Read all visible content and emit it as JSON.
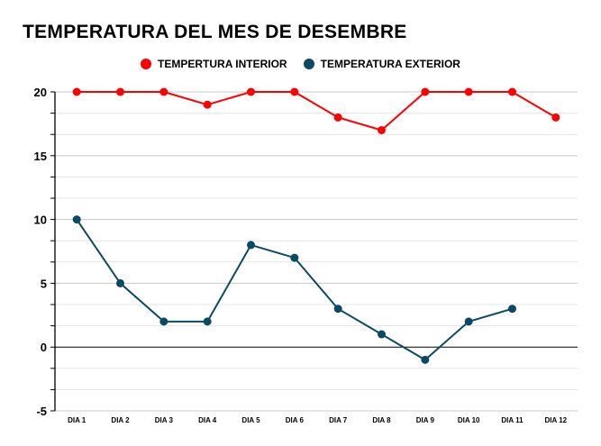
{
  "chart_data": {
    "type": "line",
    "title": "TEMPERATURA DEL MES DE DESEMBRE",
    "xlabel": "",
    "ylabel": "",
    "ylim": [
      -5,
      20
    ],
    "yticks": [
      -5,
      0,
      5,
      10,
      15,
      20
    ],
    "grid": true,
    "legend_position": "top",
    "categories": [
      "DIA 1",
      "DIA 2",
      "DIA 3",
      "DIA 4",
      "DIA 5",
      "DIA 6",
      "DIA 7",
      "DIA 8",
      "DIA 9",
      "DIA 10",
      "DIA 11",
      "DIA 12"
    ],
    "series": [
      {
        "name": "TEMPERTURA INTERIOR",
        "color": "#ff0000",
        "values": [
          20,
          20,
          20,
          19,
          20,
          20,
          18,
          17,
          20,
          20,
          20,
          18
        ]
      },
      {
        "name": "TEMPERATURA EXTERIOR",
        "color": "#0b4a63",
        "values": [
          10,
          5,
          2,
          2,
          8,
          7,
          3,
          1,
          -1,
          2,
          3,
          null
        ]
      }
    ]
  }
}
